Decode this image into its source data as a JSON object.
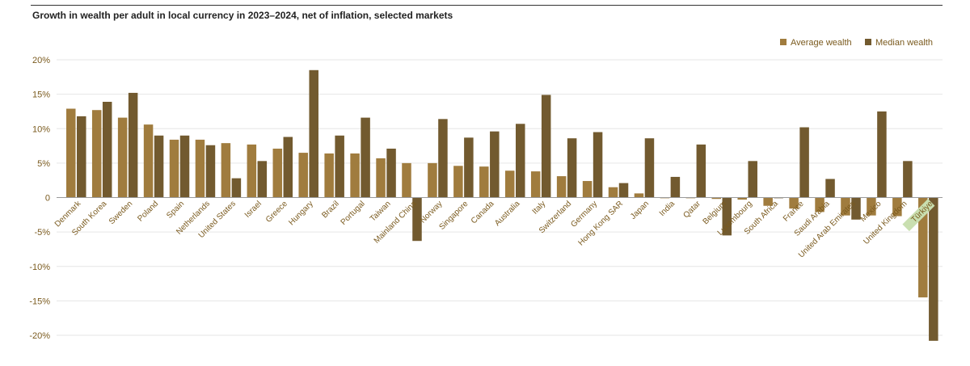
{
  "title": "Growth in wealth per adult in local currency in 2023–2024, net of inflation, selected markets",
  "chart_data": {
    "type": "bar",
    "title": "Growth in wealth per adult in local currency in 2023–2024, net of inflation, selected markets",
    "xlabel": "",
    "ylabel": "",
    "ylim": [
      -20,
      20
    ],
    "yticks": [
      20,
      15,
      10,
      5,
      0,
      -5,
      -10,
      -15,
      -20
    ],
    "ytick_labels": [
      "20%",
      "15%",
      "10%",
      "5%",
      "0",
      "-5%",
      "-10%",
      "-15%",
      "-20%"
    ],
    "grid": true,
    "legend_position": "top-right",
    "categories": [
      "Denmark",
      "South Korea",
      "Sweden",
      "Poland",
      "Spain",
      "Netherlands",
      "United States",
      "Israel",
      "Greece",
      "Hungary",
      "Brazil",
      "Portugal",
      "Taiwan",
      "Mainland China",
      "Norway",
      "Singapore",
      "Canada",
      "Australia",
      "Italy",
      "Switzerland",
      "Germany",
      "Hong Kong SAR",
      "Japan",
      "India",
      "Qatar",
      "Belgium",
      "Luxembourg",
      "South Africa",
      "France",
      "Saudi Arabia",
      "United Arab Emirates",
      "Mexico",
      "United Kingdom",
      "Türkiye"
    ],
    "highlighted_category": "Türkiye",
    "series": [
      {
        "name": "Average wealth",
        "color": "#a07c3e",
        "values": [
          12.9,
          12.7,
          11.6,
          10.6,
          8.4,
          8.4,
          7.9,
          7.7,
          7.1,
          6.5,
          6.4,
          6.4,
          5.7,
          5.0,
          5.0,
          4.6,
          4.5,
          3.9,
          3.8,
          3.1,
          2.4,
          1.5,
          0.6,
          -0.1,
          -0.1,
          -0.2,
          -0.3,
          -1.2,
          -1.6,
          -2.1,
          -2.6,
          -2.6,
          -2.7,
          -14.5
        ]
      },
      {
        "name": "Median wealth",
        "color": "#725a2f",
        "values": [
          11.8,
          13.9,
          15.2,
          9.0,
          9.0,
          7.6,
          2.8,
          5.3,
          8.8,
          18.5,
          9.0,
          11.6,
          7.1,
          -6.3,
          11.4,
          8.7,
          9.6,
          10.7,
          14.9,
          8.6,
          9.5,
          2.1,
          8.6,
          3.0,
          7.7,
          -5.5,
          5.3,
          -0.1,
          10.2,
          2.7,
          -3.2,
          12.5,
          5.3,
          -20.8
        ]
      }
    ]
  }
}
